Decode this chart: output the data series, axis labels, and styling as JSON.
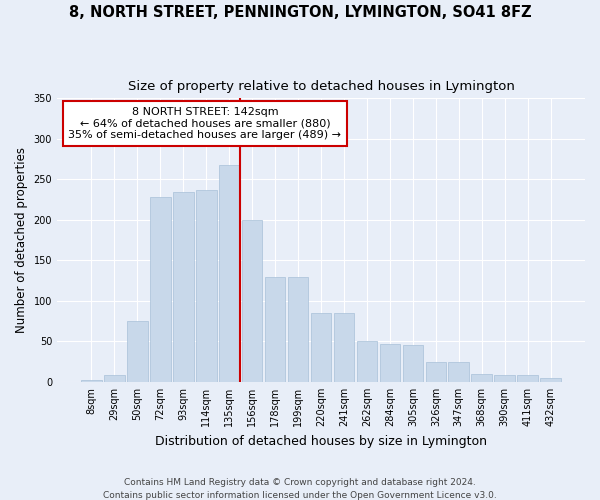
{
  "title": "8, NORTH STREET, PENNINGTON, LYMINGTON, SO41 8FZ",
  "subtitle": "Size of property relative to detached houses in Lymington",
  "xlabel": "Distribution of detached houses by size in Lymington",
  "ylabel": "Number of detached properties",
  "footnote1": "Contains HM Land Registry data © Crown copyright and database right 2024.",
  "footnote2": "Contains public sector information licensed under the Open Government Licence v3.0.",
  "bar_labels": [
    "8sqm",
    "29sqm",
    "50sqm",
    "72sqm",
    "93sqm",
    "114sqm",
    "135sqm",
    "156sqm",
    "178sqm",
    "199sqm",
    "220sqm",
    "241sqm",
    "262sqm",
    "284sqm",
    "305sqm",
    "326sqm",
    "347sqm",
    "368sqm",
    "390sqm",
    "411sqm",
    "432sqm"
  ],
  "bar_values": [
    2,
    8,
    75,
    228,
    235,
    237,
    268,
    200,
    130,
    130,
    85,
    85,
    50,
    47,
    45,
    25,
    25,
    10,
    9,
    8,
    5
  ],
  "bar_color": "#c8d8ea",
  "bar_edgecolor": "#a8c0d8",
  "vline_color": "#cc0000",
  "vline_label": "8 NORTH STREET: 142sqm",
  "annotation_line1": "← 64% of detached houses are smaller (880)",
  "annotation_line2": "35% of semi-detached houses are larger (489) →",
  "annotation_box_facecolor": "white",
  "annotation_box_edgecolor": "#cc0000",
  "ylim": [
    0,
    350
  ],
  "yticks": [
    0,
    50,
    100,
    150,
    200,
    250,
    300,
    350
  ],
  "bg_color": "#e8eef8",
  "plot_bg_color": "#e8eef8",
  "grid_color": "white",
  "title_fontsize": 10.5,
  "subtitle_fontsize": 9.5,
  "ylabel_fontsize": 8.5,
  "xlabel_fontsize": 9,
  "tick_fontsize": 7,
  "footnote_fontsize": 6.5,
  "ann_fontsize": 8
}
